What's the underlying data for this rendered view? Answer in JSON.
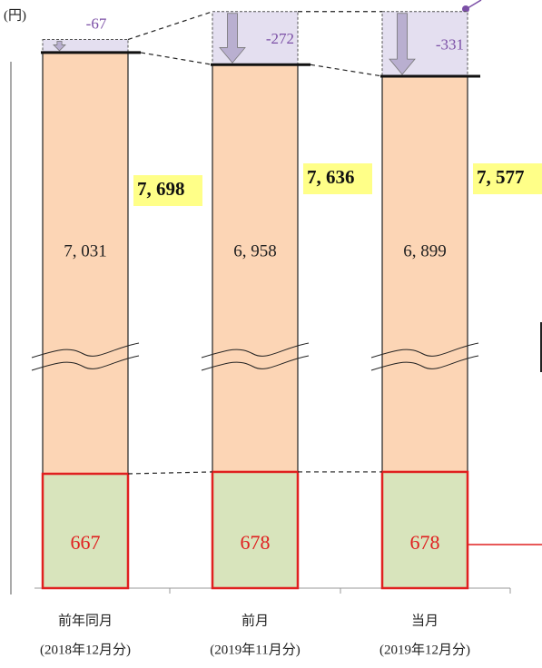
{
  "chart_data": {
    "type": "bar",
    "stacked": true,
    "unit_label": "(円)",
    "categories": [
      "前年同月",
      "前月",
      "当月"
    ],
    "category_notes": [
      "(2018年12月分)",
      "(2019年11月分)",
      "(2019年12月分)"
    ],
    "series": [
      {
        "color": "#d8e4bc",
        "edge": "#e02020",
        "label_color": "#e02020",
        "values": [
          667,
          678,
          678
        ]
      },
      {
        "color": "#fcd5b5",
        "edge": "#222222",
        "label_color": "#222222",
        "values": [
          7031,
          6958,
          6899
        ],
        "value_labels": [
          "7, 031",
          "6, 958",
          "6, 899"
        ]
      },
      {
        "color": "#e4dff0",
        "edge": "#555555",
        "label_color": "#7b4fa6",
        "values": [
          -67,
          -272,
          -331
        ]
      }
    ],
    "totals": [
      7698,
      7636,
      7577
    ],
    "total_labels": [
      "7, 698",
      "7, 636",
      "7, 577"
    ]
  }
}
